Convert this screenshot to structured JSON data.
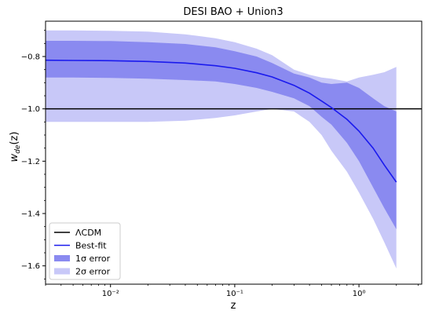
{
  "chart_data": {
    "type": "area",
    "title": "DESI BAO + Union3",
    "xlabel": "z",
    "ylabel": "w_de(z)",
    "xscale": "log",
    "xlim": [
      0.003,
      3.2
    ],
    "ylim": [
      -1.67,
      -0.665
    ],
    "grid": false,
    "legend_placement": "lower-left",
    "x_ticks": [
      {
        "value": 0.01,
        "label": "10⁻²"
      },
      {
        "value": 0.1,
        "label": "10⁻¹"
      },
      {
        "value": 1.0,
        "label": "10⁰"
      }
    ],
    "y_ticks": [
      {
        "value": -0.8,
        "label": "−0.8"
      },
      {
        "value": -1.0,
        "label": "−1.0"
      },
      {
        "value": -1.2,
        "label": "−1.2"
      },
      {
        "value": -1.4,
        "label": "−1.4"
      },
      {
        "value": -1.6,
        "label": "−1.6"
      }
    ],
    "reference_line": {
      "name": "ΛCDM",
      "y": -1.0,
      "color": "#000000"
    },
    "best_fit": {
      "name": "Best-fit",
      "color": "#1a1aee",
      "x": [
        0.003,
        0.005,
        0.01,
        0.02,
        0.04,
        0.07,
        0.1,
        0.15,
        0.2,
        0.3,
        0.4,
        0.5,
        0.6,
        0.8,
        1.0,
        1.3,
        1.6,
        2.0
      ],
      "y": [
        -0.814,
        -0.815,
        -0.816,
        -0.819,
        -0.825,
        -0.835,
        -0.845,
        -0.862,
        -0.878,
        -0.91,
        -0.94,
        -0.97,
        -0.995,
        -1.04,
        -1.085,
        -1.15,
        -1.215,
        -1.28
      ]
    },
    "bands": [
      {
        "name": "1σ error",
        "color": "#8a8af0",
        "x": [
          0.003,
          0.005,
          0.01,
          0.02,
          0.04,
          0.07,
          0.1,
          0.15,
          0.2,
          0.3,
          0.4,
          0.5,
          0.6,
          0.8,
          1.0,
          1.3,
          1.6,
          2.0
        ],
        "upper": [
          -0.74,
          -0.74,
          -0.741,
          -0.745,
          -0.752,
          -0.765,
          -0.78,
          -0.8,
          -0.825,
          -0.865,
          -0.88,
          -0.9,
          -0.905,
          -0.9,
          -0.92,
          -0.96,
          -0.99,
          -1.01
        ],
        "lower": [
          -0.88,
          -0.88,
          -0.882,
          -0.885,
          -0.89,
          -0.895,
          -0.905,
          -0.92,
          -0.935,
          -0.96,
          -0.99,
          -1.03,
          -1.06,
          -1.13,
          -1.2,
          -1.3,
          -1.38,
          -1.46
        ]
      },
      {
        "name": "2σ error",
        "color": "#c8c8f8",
        "x": [
          0.003,
          0.005,
          0.01,
          0.02,
          0.04,
          0.07,
          0.1,
          0.15,
          0.2,
          0.3,
          0.4,
          0.5,
          0.6,
          0.8,
          1.0,
          1.3,
          1.6,
          2.0
        ],
        "upper": [
          -0.7,
          -0.7,
          -0.702,
          -0.705,
          -0.715,
          -0.73,
          -0.745,
          -0.77,
          -0.795,
          -0.85,
          -0.87,
          -0.88,
          -0.885,
          -0.895,
          -0.88,
          -0.87,
          -0.86,
          -0.84
        ],
        "lower": [
          -1.05,
          -1.05,
          -1.05,
          -1.05,
          -1.045,
          -1.035,
          -1.025,
          -1.01,
          -1.0,
          -1.01,
          -1.05,
          -1.1,
          -1.16,
          -1.24,
          -1.32,
          -1.42,
          -1.51,
          -1.61
        ]
      }
    ],
    "legend": [
      {
        "kind": "line",
        "series": "reference_line",
        "label": "ΛCDM"
      },
      {
        "kind": "line",
        "series": "best_fit",
        "label": "Best-fit"
      },
      {
        "kind": "patch",
        "series": "band-0",
        "label": "1σ error"
      },
      {
        "kind": "patch",
        "series": "band-1",
        "label": "2σ error"
      }
    ]
  }
}
